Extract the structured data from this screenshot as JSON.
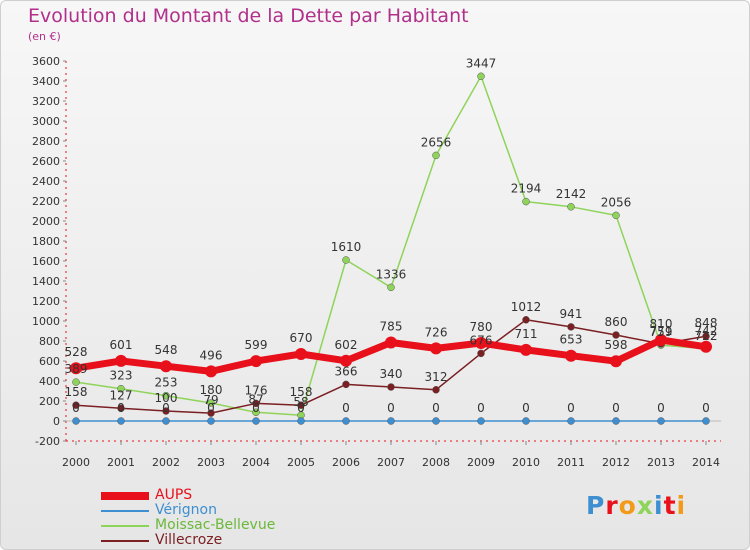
{
  "title": "Evolution du Montant de la Dette par Habitant",
  "subtitle": "(en €)",
  "logo": "Proxiti",
  "chart_data": {
    "type": "line",
    "title": "Evolution du Montant de la Dette par Habitant",
    "ylabel": "(en €)",
    "xlabel": "",
    "ylim": [
      -200,
      3600
    ],
    "yticks": [
      -200,
      0,
      200,
      400,
      600,
      800,
      1000,
      1200,
      1400,
      1600,
      1800,
      2000,
      2200,
      2400,
      2600,
      2800,
      3000,
      3200,
      3400,
      3600
    ],
    "grid": false,
    "legend": "bottom-left",
    "categories": [
      "2000",
      "2001",
      "2002",
      "2003",
      "2004",
      "2005",
      "2006",
      "2007",
      "2008",
      "2009",
      "2010",
      "2011",
      "2012",
      "2013",
      "2014"
    ],
    "series": [
      {
        "name": "AUPS",
        "color": "#e8101a",
        "values": [
          528,
          601,
          548,
          496,
          599,
          670,
          602,
          785,
          726,
          780,
          711,
          653,
          598,
          810,
          742
        ]
      },
      {
        "name": "Vérignon",
        "color": "#3d8fd1",
        "values": [
          0,
          0,
          0,
          0,
          0,
          0,
          0,
          0,
          0,
          0,
          0,
          0,
          0,
          0,
          0
        ]
      },
      {
        "name": "Moissac-Bellevue",
        "color": "#8fd45a",
        "values": [
          389,
          323,
          253,
          180,
          87,
          58,
          1610,
          1336,
          2656,
          3447,
          2194,
          2142,
          2056,
          759,
          722
        ]
      },
      {
        "name": "Villecroze",
        "color": "#7a1f22",
        "values": [
          158,
          127,
          100,
          79,
          176,
          158,
          366,
          340,
          312,
          676,
          1012,
          941,
          860,
          771,
          848
        ]
      }
    ]
  }
}
